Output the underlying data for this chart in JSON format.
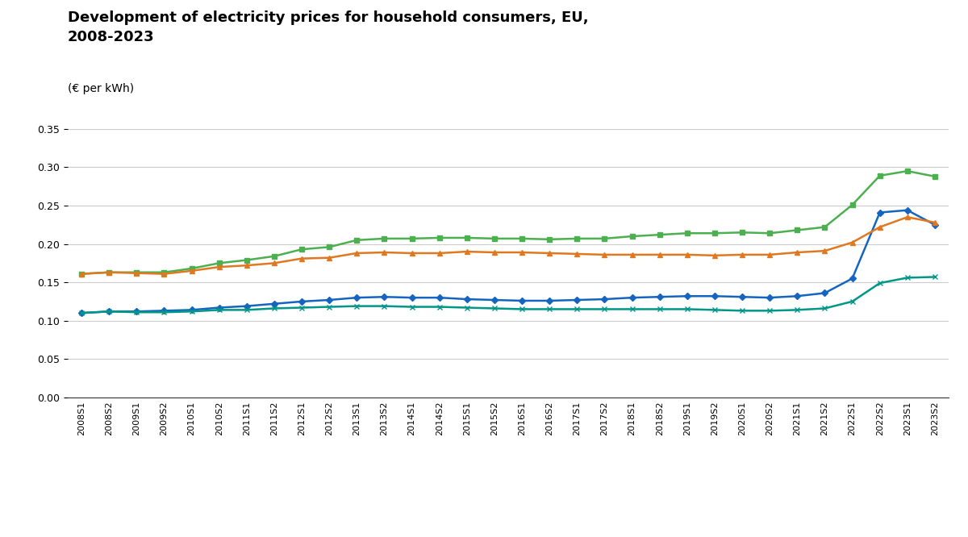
{
  "title": "Development of electricity prices for household consumers, EU,\n2008-2023",
  "subtitle": "(€ per kWh)",
  "x_labels": [
    "2008S1",
    "2008S2",
    "2009S1",
    "2009S2",
    "2010S1",
    "2010S2",
    "2011S1",
    "2011S2",
    "2012S1",
    "2012S2",
    "2013S1",
    "2013S2",
    "2014S1",
    "2014S2",
    "2015S1",
    "2015S2",
    "2016S1",
    "2016S2",
    "2017S1",
    "2017S2",
    "2018S1",
    "2018S2",
    "2019S1",
    "2019S2",
    "2020S1",
    "2020S2",
    "2021S1",
    "2021S2",
    "2022S1",
    "2022S2",
    "2023S1",
    "2023S2"
  ],
  "prices_incl_taxes": [
    0.161,
    0.163,
    0.163,
    0.163,
    0.168,
    0.175,
    0.179,
    0.184,
    0.193,
    0.196,
    0.205,
    0.207,
    0.207,
    0.208,
    0.208,
    0.207,
    0.207,
    0.206,
    0.207,
    0.207,
    0.21,
    0.212,
    0.214,
    0.214,
    0.215,
    0.214,
    0.218,
    0.222,
    0.251,
    0.289,
    0.295,
    0.288
  ],
  "prices_excl_taxes": [
    0.11,
    0.112,
    0.112,
    0.113,
    0.114,
    0.117,
    0.119,
    0.122,
    0.125,
    0.127,
    0.13,
    0.131,
    0.13,
    0.13,
    0.128,
    0.127,
    0.126,
    0.126,
    0.127,
    0.128,
    0.13,
    0.131,
    0.132,
    0.132,
    0.131,
    0.13,
    0.132,
    0.136,
    0.155,
    0.241,
    0.244,
    0.225
  ],
  "prices_incl_taxes_adj": [
    0.161,
    0.163,
    0.162,
    0.161,
    0.165,
    0.17,
    0.172,
    0.175,
    0.181,
    0.182,
    0.188,
    0.189,
    0.188,
    0.188,
    0.19,
    0.189,
    0.189,
    0.188,
    0.187,
    0.186,
    0.186,
    0.186,
    0.186,
    0.185,
    0.186,
    0.186,
    0.189,
    0.191,
    0.202,
    0.222,
    0.235,
    0.228
  ],
  "prices_excl_taxes_adj": [
    0.11,
    0.112,
    0.111,
    0.111,
    0.112,
    0.114,
    0.114,
    0.116,
    0.117,
    0.118,
    0.119,
    0.119,
    0.118,
    0.118,
    0.117,
    0.116,
    0.115,
    0.115,
    0.115,
    0.115,
    0.115,
    0.115,
    0.115,
    0.114,
    0.113,
    0.113,
    0.114,
    0.116,
    0.125,
    0.149,
    0.156,
    0.157
  ],
  "color_green": "#4CAF50",
  "color_blue": "#1565C0",
  "color_orange": "#E07820",
  "color_teal": "#009688",
  "ylim": [
    0.0,
    0.35
  ],
  "yticks": [
    0.0,
    0.05,
    0.1,
    0.15,
    0.2,
    0.25,
    0.3,
    0.35
  ]
}
